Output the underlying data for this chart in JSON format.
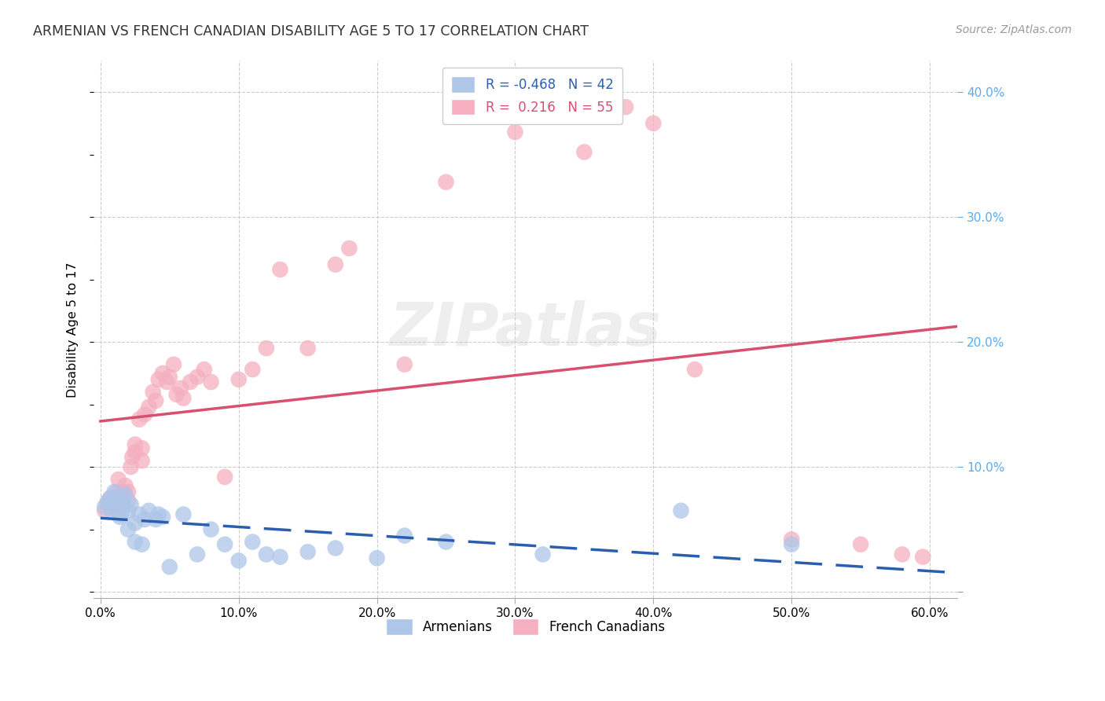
{
  "title": "ARMENIAN VS FRENCH CANADIAN DISABILITY AGE 5 TO 17 CORRELATION CHART",
  "source": "Source: ZipAtlas.com",
  "ylabel": "Disability Age 5 to 17",
  "xlim": [
    -0.005,
    0.62
  ],
  "ylim": [
    -0.005,
    0.425
  ],
  "xticks": [
    0.0,
    0.1,
    0.2,
    0.3,
    0.4,
    0.5,
    0.6
  ],
  "xticklabels": [
    "0.0%",
    "10.0%",
    "20.0%",
    "30.0%",
    "40.0%",
    "50.0%",
    "60.0%"
  ],
  "yticks_right": [
    0.0,
    0.1,
    0.2,
    0.3,
    0.4
  ],
  "ytick_right_labels": [
    "",
    "10.0%",
    "20.0%",
    "30.0%",
    "40.0%"
  ],
  "armenian_color": "#aec6e8",
  "french_color": "#f5afc0",
  "armenian_line_color": "#2b5fae",
  "french_line_color": "#d94f70",
  "background_color": "#ffffff",
  "grid_color": "#cccccc",
  "title_color": "#333333",
  "source_color": "#999999",
  "right_tick_color": "#5aabee",
  "legend_title_blue": "R = -0.468   N = 42",
  "legend_title_pink": "R =  0.216   N = 55",
  "armenians_x": [
    0.003,
    0.005,
    0.007,
    0.008,
    0.01,
    0.01,
    0.012,
    0.012,
    0.014,
    0.015,
    0.015,
    0.016,
    0.018,
    0.02,
    0.02,
    0.022,
    0.025,
    0.025,
    0.028,
    0.03,
    0.032,
    0.035,
    0.04,
    0.042,
    0.045,
    0.05,
    0.06,
    0.07,
    0.08,
    0.09,
    0.1,
    0.11,
    0.12,
    0.13,
    0.15,
    0.17,
    0.2,
    0.22,
    0.25,
    0.32,
    0.42,
    0.5
  ],
  "armenians_y": [
    0.068,
    0.072,
    0.075,
    0.065,
    0.07,
    0.08,
    0.065,
    0.075,
    0.06,
    0.062,
    0.068,
    0.073,
    0.078,
    0.05,
    0.065,
    0.07,
    0.04,
    0.055,
    0.062,
    0.038,
    0.058,
    0.065,
    0.058,
    0.062,
    0.06,
    0.02,
    0.062,
    0.03,
    0.05,
    0.038,
    0.025,
    0.04,
    0.03,
    0.028,
    0.032,
    0.035,
    0.027,
    0.045,
    0.04,
    0.03,
    0.065,
    0.038
  ],
  "french_x": [
    0.003,
    0.005,
    0.007,
    0.01,
    0.01,
    0.012,
    0.013,
    0.015,
    0.015,
    0.017,
    0.018,
    0.02,
    0.02,
    0.022,
    0.023,
    0.025,
    0.025,
    0.028,
    0.03,
    0.03,
    0.032,
    0.035,
    0.038,
    0.04,
    0.042,
    0.045,
    0.048,
    0.05,
    0.053,
    0.055,
    0.058,
    0.06,
    0.065,
    0.07,
    0.075,
    0.08,
    0.09,
    0.1,
    0.11,
    0.12,
    0.13,
    0.15,
    0.17,
    0.18,
    0.22,
    0.25,
    0.3,
    0.35,
    0.38,
    0.4,
    0.43,
    0.5,
    0.55,
    0.58,
    0.595
  ],
  "french_y": [
    0.065,
    0.07,
    0.075,
    0.068,
    0.075,
    0.08,
    0.09,
    0.068,
    0.073,
    0.08,
    0.085,
    0.073,
    0.08,
    0.1,
    0.108,
    0.112,
    0.118,
    0.138,
    0.105,
    0.115,
    0.142,
    0.148,
    0.16,
    0.153,
    0.17,
    0.175,
    0.168,
    0.172,
    0.182,
    0.158,
    0.163,
    0.155,
    0.168,
    0.172,
    0.178,
    0.168,
    0.092,
    0.17,
    0.178,
    0.195,
    0.258,
    0.195,
    0.262,
    0.275,
    0.182,
    0.328,
    0.368,
    0.352,
    0.388,
    0.375,
    0.178,
    0.042,
    0.038,
    0.03,
    0.028
  ]
}
